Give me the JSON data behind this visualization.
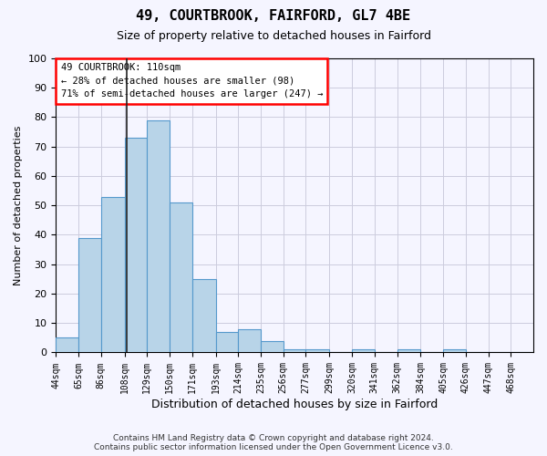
{
  "title1": "49, COURTBROOK, FAIRFORD, GL7 4BE",
  "title2": "Size of property relative to detached houses in Fairford",
  "xlabel": "Distribution of detached houses by size in Fairford",
  "ylabel": "Number of detached properties",
  "bar_values": [
    5,
    39,
    53,
    73,
    79,
    51,
    25,
    7,
    8,
    4,
    1,
    1,
    0,
    1,
    0,
    1,
    0,
    1,
    0,
    0,
    0
  ],
  "bin_labels": [
    "44sqm",
    "65sqm",
    "86sqm",
    "108sqm",
    "129sqm",
    "150sqm",
    "171sqm",
    "193sqm",
    "214sqm",
    "235sqm",
    "256sqm",
    "277sqm",
    "299sqm",
    "320sqm",
    "341sqm",
    "362sqm",
    "384sqm",
    "405sqm",
    "426sqm",
    "447sqm",
    "468sqm"
  ],
  "bins": [
    44,
    65,
    86,
    108,
    129,
    150,
    171,
    193,
    214,
    235,
    256,
    277,
    299,
    320,
    341,
    362,
    384,
    405,
    426,
    447,
    468,
    489
  ],
  "bar_color": "#b8d4e8",
  "bar_edge_color": "#5599cc",
  "vline_x": 110,
  "vline_color": "#222222",
  "annotation_box_text": "49 COURTBROOK: 110sqm\n← 28% of detached houses are smaller (98)\n71% of semi-detached houses are larger (247) →",
  "ylim": [
    0,
    100
  ],
  "yticks": [
    0,
    10,
    20,
    30,
    40,
    50,
    60,
    70,
    80,
    90,
    100
  ],
  "footer_line1": "Contains HM Land Registry data © Crown copyright and database right 2024.",
  "footer_line2": "Contains public sector information licensed under the Open Government Licence v3.0.",
  "bg_color": "#f5f5ff",
  "grid_color": "#ccccdd"
}
